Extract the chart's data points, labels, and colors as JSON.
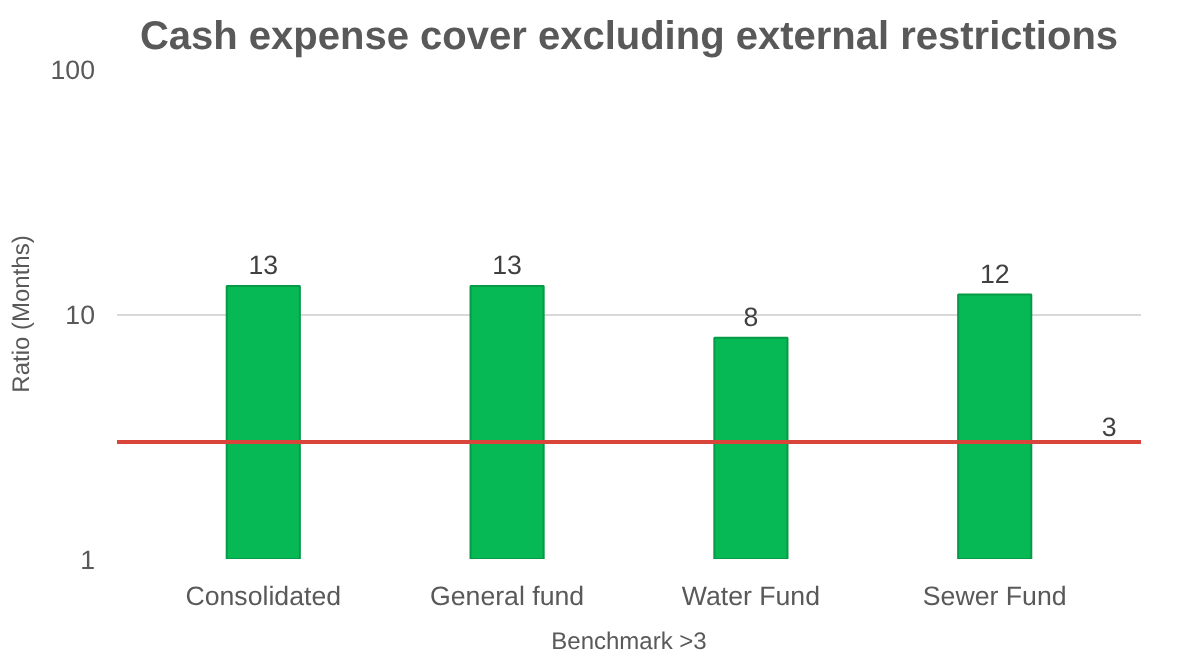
{
  "chart_data": {
    "type": "bar",
    "title": "Cash expense cover excluding external restrictions",
    "categories": [
      "Consolidated",
      "General fund",
      "Water Fund",
      "Sewer Fund"
    ],
    "values": [
      13,
      13,
      8,
      12
    ],
    "color": "#07b955",
    "data_labels": true,
    "xlabel": "Benchmark >3",
    "ylabel": "Ratio (Months)",
    "log": true,
    "ylim": [
      1,
      100
    ],
    "yticks": [
      1,
      10,
      100
    ],
    "grid": "y",
    "ref_lines": [
      {
        "axis": "y",
        "value": 3,
        "label": "3",
        "color": "#d9443b"
      }
    ]
  }
}
